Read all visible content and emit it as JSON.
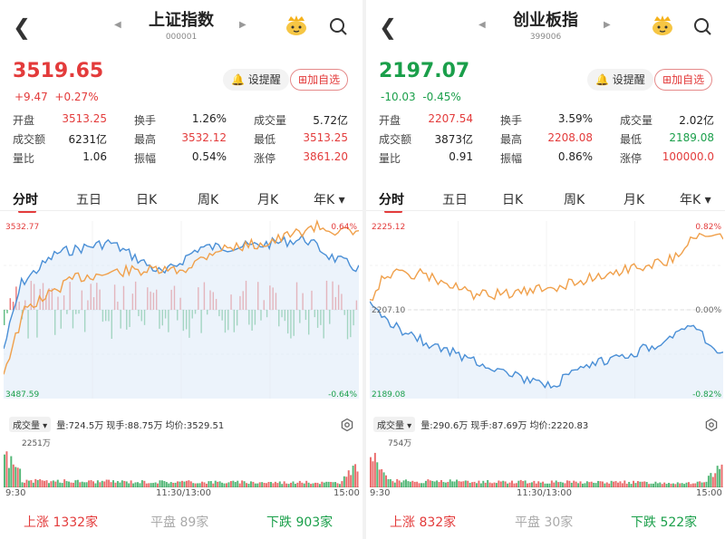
{
  "colors": {
    "up": "#e33b3b",
    "down": "#1a9f4a",
    "price_line": "#4a8fd6",
    "avg_line": "#f0a04b",
    "tab_underline": "#e33b3b"
  },
  "tabs": [
    "分时",
    "五日",
    "日K",
    "周K",
    "月K",
    "年K"
  ],
  "panels": [
    {
      "title": "上证指数",
      "code": "000001",
      "price": "3519.65",
      "change": "+9.47",
      "change_pct": "+0.27%",
      "remind_label": "设提醒",
      "add_label": "加自选",
      "stats": [
        [
          {
            "l": "开盘",
            "v": "3513.25",
            "c": "red"
          },
          {
            "l": "换手",
            "v": "1.26%",
            "c": ""
          },
          {
            "l": "成交量",
            "v": "5.72亿",
            "c": ""
          }
        ],
        [
          {
            "l": "成交额",
            "v": "6231亿",
            "c": ""
          },
          {
            "l": "最高",
            "v": "3532.12",
            "c": "red"
          },
          {
            "l": "最低",
            "v": "3513.25",
            "c": "red"
          }
        ],
        [
          {
            "l": "量比",
            "v": "1.06",
            "c": ""
          },
          {
            "l": "振幅",
            "v": "0.54%",
            "c": ""
          },
          {
            "l": "涨停",
            "v": "3861.20",
            "c": "red"
          }
        ]
      ],
      "axis": {
        "top": "3532.77",
        "bottom": "3487.59",
        "mid": "",
        "pct_top": "0.64%",
        "pct_bottom": "-0.64%",
        "pct_mid": ""
      },
      "vol": {
        "badge": "成交量",
        "info": "量:724.5万  现手:88.75万  均价:3529.51",
        "max": "2251万"
      },
      "time": {
        "start": "9:30",
        "mid": "11:30/13:00",
        "end": "15:00"
      },
      "footer": {
        "up": "上涨  1332家",
        "flat": "平盘  89家",
        "down": "下跌  903家"
      }
    },
    {
      "title": "创业板指",
      "code": "399006",
      "price": "2197.07",
      "change": "-10.03",
      "change_pct": "-0.45%",
      "remind_label": "设提醒",
      "add_label": "加自选",
      "stats": [
        [
          {
            "l": "开盘",
            "v": "2207.54",
            "c": "red"
          },
          {
            "l": "换手",
            "v": "3.59%",
            "c": ""
          },
          {
            "l": "成交量",
            "v": "2.02亿",
            "c": ""
          }
        ],
        [
          {
            "l": "成交额",
            "v": "3873亿",
            "c": ""
          },
          {
            "l": "最高",
            "v": "2208.08",
            "c": "red"
          },
          {
            "l": "最低",
            "v": "2189.08",
            "c": "green"
          }
        ],
        [
          {
            "l": "量比",
            "v": "0.91",
            "c": ""
          },
          {
            "l": "振幅",
            "v": "0.86%",
            "c": ""
          },
          {
            "l": "涨停",
            "v": "100000.0",
            "c": "red"
          }
        ]
      ],
      "axis": {
        "top": "2225.12",
        "bottom": "2189.08",
        "mid": "2207.10",
        "pct_top": "0.82%",
        "pct_bottom": "-0.82%",
        "pct_mid": "0.00%"
      },
      "vol": {
        "badge": "成交量",
        "info": "量:290.6万  现手:87.69万  均价:2220.83",
        "max": "754万"
      },
      "time": {
        "start": "9:30",
        "mid": "11:30/13:00",
        "end": "15:00"
      },
      "footer": {
        "up": "上涨  832家",
        "flat": "平盘  30家",
        "down": "下跌  522家"
      }
    }
  ]
}
